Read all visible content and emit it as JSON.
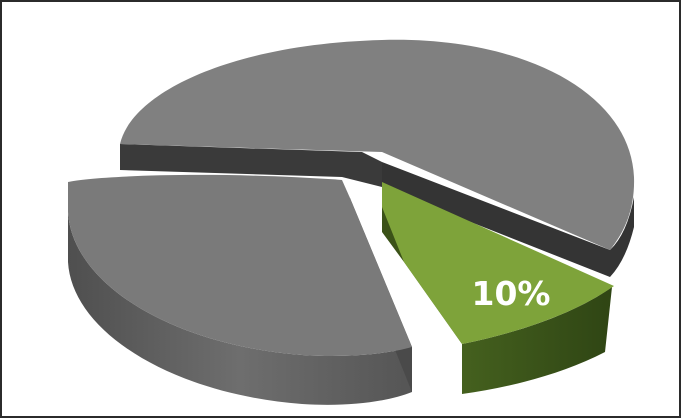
{
  "chart_data": {
    "type": "pie",
    "style": "3d-exploded",
    "slices": [
      {
        "value": 10,
        "label": "10%",
        "color": "#7ea33a",
        "side_color": "#3f5a1c",
        "exploded": true
      },
      {
        "value": 37,
        "label": "",
        "color": "#7a7a7a",
        "side_color": "#5e5e5e",
        "exploded": true
      },
      {
        "value": 53,
        "label": "",
        "color": "#808080",
        "side_color": "#3a3a3a",
        "exploded": false
      }
    ],
    "legend": "none"
  }
}
